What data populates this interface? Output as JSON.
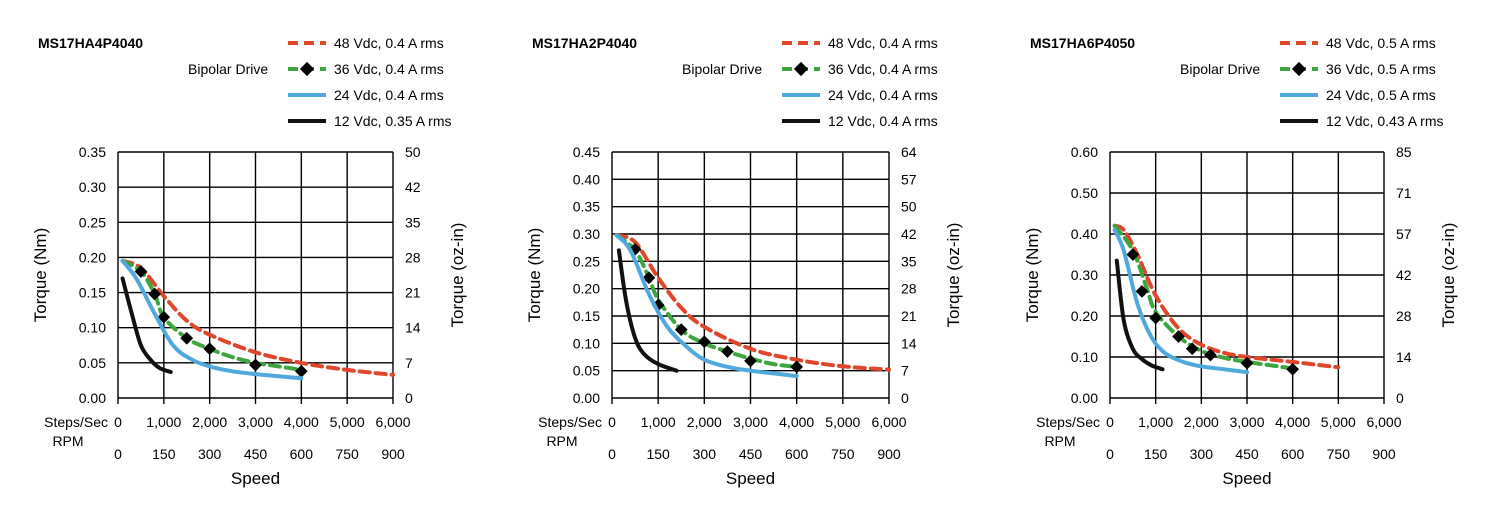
{
  "chart_data": [
    {
      "type": "line",
      "title": "MS17HA4P4040",
      "drive_label": "Bipolar Drive",
      "ylabel": "Torque (Nm)",
      "y2label": "Torque (oz-in)",
      "xlabel": "Speed",
      "x_row1_label": "Steps/Sec",
      "x_row2_label": "RPM",
      "xlim": [
        0,
        6000
      ],
      "ylim": [
        0,
        0.35
      ],
      "y_ticks": [
        "0.00",
        "0.05",
        "0.10",
        "0.15",
        "0.20",
        "0.25",
        "0.30",
        "0.35"
      ],
      "y2_ticks": [
        "0",
        "7",
        "14",
        "21",
        "28",
        "35",
        "42",
        "50"
      ],
      "x_steps_ticks": [
        "0",
        "1,000",
        "2,000",
        "3,000",
        "4,000",
        "5,000",
        "6,000"
      ],
      "x_rpm_ticks": [
        "0",
        "150",
        "300",
        "450",
        "600",
        "750",
        "900"
      ],
      "series": [
        {
          "name": "48 Vdc, 0.4 A rms",
          "color": "#e0462a",
          "style": "dashed",
          "markers": false,
          "x": [
            100,
            500,
            1000,
            1500,
            2000,
            3000,
            4000,
            5000,
            6000
          ],
          "y": [
            0.195,
            0.185,
            0.145,
            0.11,
            0.09,
            0.065,
            0.05,
            0.04,
            0.033
          ]
        },
        {
          "name": "36 Vdc, 0.4 A rms",
          "color": "#3ca63c",
          "style": "dashed",
          "markers": true,
          "x": [
            100,
            500,
            800,
            1000,
            1500,
            2000,
            2500,
            3000,
            3500,
            4000
          ],
          "y": [
            0.195,
            0.18,
            0.148,
            0.115,
            0.085,
            0.07,
            0.058,
            0.05,
            0.045,
            0.04
          ],
          "marker_x": [
            500,
            800,
            1000,
            1500,
            2000,
            3000,
            4000
          ],
          "marker_y": [
            0.18,
            0.148,
            0.115,
            0.085,
            0.07,
            0.047,
            0.038
          ]
        },
        {
          "name": "24 Vdc, 0.4 A rms",
          "color": "#4fa9dc",
          "style": "solid",
          "markers": false,
          "x": [
            100,
            400,
            800,
            1200,
            1600,
            2000,
            2500,
            3000,
            3500,
            4000
          ],
          "y": [
            0.195,
            0.17,
            0.12,
            0.075,
            0.055,
            0.045,
            0.038,
            0.034,
            0.031,
            0.028
          ]
        },
        {
          "name": "12 Vdc, 0.35 A rms",
          "color": "#111111",
          "style": "solid",
          "markers": false,
          "x": [
            100,
            300,
            500,
            700,
            900,
            1150
          ],
          "y": [
            0.17,
            0.12,
            0.075,
            0.055,
            0.043,
            0.037
          ]
        }
      ]
    },
    {
      "type": "line",
      "title": "MS17HA2P4040",
      "drive_label": "Bipolar Drive",
      "ylabel": "Torque (Nm)",
      "y2label": "Torque (oz-in)",
      "xlabel": "Speed",
      "x_row1_label": "Steps/Sec",
      "x_row2_label": "RPM",
      "xlim": [
        0,
        6000
      ],
      "ylim": [
        0,
        0.45
      ],
      "y_ticks": [
        "0.00",
        "0.05",
        "0.10",
        "0.15",
        "0.20",
        "0.25",
        "0.30",
        "0.35",
        "0.40",
        "0.45"
      ],
      "y2_ticks": [
        "0",
        "7",
        "14",
        "21",
        "28",
        "35",
        "42",
        "50",
        "57",
        "64"
      ],
      "x_steps_ticks": [
        "0",
        "1,000",
        "2,000",
        "3,000",
        "4,000",
        "5,000",
        "6,000"
      ],
      "x_rpm_ticks": [
        "0",
        "150",
        "300",
        "450",
        "600",
        "750",
        "900"
      ],
      "series": [
        {
          "name": "48 Vdc, 0.4 A rms",
          "color": "#e0462a",
          "style": "dashed",
          "markers": false,
          "x": [
            100,
            500,
            1000,
            1500,
            2000,
            3000,
            4000,
            5000,
            6000
          ],
          "y": [
            0.298,
            0.285,
            0.22,
            0.165,
            0.13,
            0.09,
            0.07,
            0.058,
            0.052
          ]
        },
        {
          "name": "36 Vdc, 0.4 A rms",
          "color": "#3ca63c",
          "style": "dashed",
          "markers": true,
          "x": [
            100,
            500,
            800,
            1000,
            1500,
            2000,
            2500,
            3000,
            3500,
            4000
          ],
          "y": [
            0.298,
            0.27,
            0.22,
            0.18,
            0.125,
            0.1,
            0.085,
            0.072,
            0.062,
            0.057
          ],
          "marker_x": [
            500,
            800,
            1000,
            1500,
            2000,
            2500,
            3000,
            4000
          ],
          "marker_y": [
            0.272,
            0.22,
            0.17,
            0.125,
            0.103,
            0.085,
            0.068,
            0.057
          ]
        },
        {
          "name": "24 Vdc, 0.4 A rms",
          "color": "#4fa9dc",
          "style": "solid",
          "markers": false,
          "x": [
            100,
            400,
            800,
            1200,
            1600,
            2000,
            2500,
            3000,
            3500,
            4000
          ],
          "y": [
            0.298,
            0.27,
            0.19,
            0.13,
            0.095,
            0.07,
            0.057,
            0.05,
            0.045,
            0.04
          ]
        },
        {
          "name": "12 Vdc, 0.4 A rms",
          "color": "#111111",
          "style": "solid",
          "markers": false,
          "x": [
            150,
            300,
            500,
            700,
            1000,
            1400
          ],
          "y": [
            0.27,
            0.18,
            0.11,
            0.08,
            0.062,
            0.05
          ]
        }
      ]
    },
    {
      "type": "line",
      "title": "MS17HA6P4050",
      "drive_label": "Bipolar Drive",
      "ylabel": "Torque (Nm)",
      "y2label": "Torque (oz-in)",
      "xlabel": "Speed",
      "x_row1_label": "Steps/Sec",
      "x_row2_label": "RPM",
      "xlim": [
        0,
        6000
      ],
      "ylim": [
        0,
        0.6
      ],
      "y_ticks": [
        "0.00",
        "0.10",
        "0.20",
        "0.30",
        "0.40",
        "0.50",
        "0.60"
      ],
      "y2_ticks": [
        "0",
        "14",
        "28",
        "42",
        "57",
        "71",
        "85"
      ],
      "x_steps_ticks": [
        "0",
        "1,000",
        "2,000",
        "3,000",
        "4,000",
        "5,000",
        "6,000"
      ],
      "x_rpm_ticks": [
        "0",
        "150",
        "300",
        "450",
        "600",
        "750",
        "900"
      ],
      "series": [
        {
          "name": "48 Vdc, 0.5 A rms",
          "color": "#e0462a",
          "style": "dashed",
          "markers": false,
          "x": [
            100,
            300,
            600,
            1000,
            1500,
            2000,
            2500,
            3000,
            4000,
            5000
          ],
          "y": [
            0.42,
            0.41,
            0.35,
            0.25,
            0.17,
            0.13,
            0.11,
            0.1,
            0.088,
            0.075
          ]
        },
        {
          "name": "36 Vdc, 0.5 A rms",
          "color": "#3ca63c",
          "style": "dashed",
          "markers": true,
          "x": [
            100,
            500,
            800,
            1000,
            1500,
            2000,
            2500,
            3000,
            3500,
            4000
          ],
          "y": [
            0.42,
            0.36,
            0.27,
            0.21,
            0.15,
            0.115,
            0.098,
            0.088,
            0.08,
            0.072
          ],
          "marker_x": [
            500,
            700,
            1000,
            1500,
            1800,
            2200,
            3000,
            4000
          ],
          "marker_y": [
            0.35,
            0.26,
            0.195,
            0.15,
            0.12,
            0.105,
            0.085,
            0.07
          ]
        },
        {
          "name": "24 Vdc, 0.5 A rms",
          "color": "#4fa9dc",
          "style": "solid",
          "markers": false,
          "x": [
            100,
            300,
            600,
            900,
            1200,
            1600,
            2000,
            2500,
            3000
          ],
          "y": [
            0.41,
            0.36,
            0.23,
            0.15,
            0.11,
            0.088,
            0.077,
            0.07,
            0.063
          ]
        },
        {
          "name": "12 Vdc, 0.43 A rms",
          "color": "#111111",
          "style": "solid",
          "markers": false,
          "x": [
            150,
            300,
            500,
            700,
            900,
            1150
          ],
          "y": [
            0.335,
            0.19,
            0.12,
            0.095,
            0.08,
            0.07
          ]
        }
      ]
    }
  ]
}
